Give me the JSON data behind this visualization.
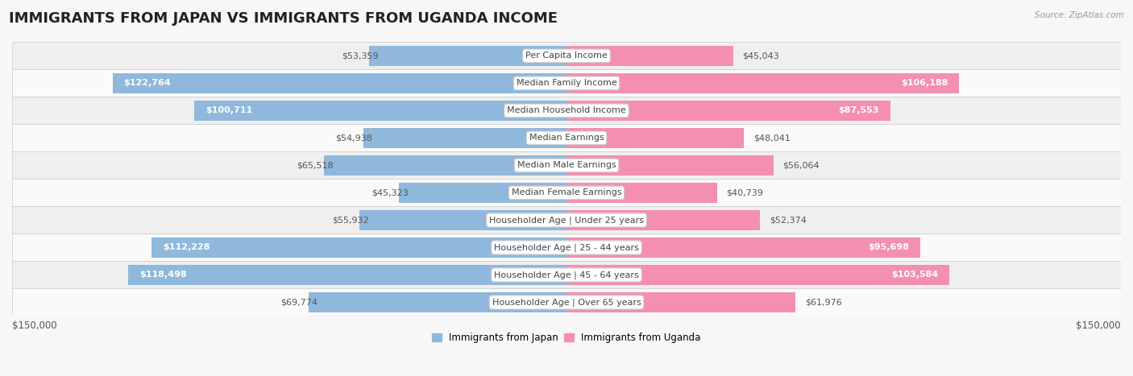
{
  "title": "IMMIGRANTS FROM JAPAN VS IMMIGRANTS FROM UGANDA INCOME",
  "source": "Source: ZipAtlas.com",
  "categories": [
    "Per Capita Income",
    "Median Family Income",
    "Median Household Income",
    "Median Earnings",
    "Median Male Earnings",
    "Median Female Earnings",
    "Householder Age | Under 25 years",
    "Householder Age | 25 - 44 years",
    "Householder Age | 45 - 64 years",
    "Householder Age | Over 65 years"
  ],
  "japan_values": [
    53359,
    122764,
    100711,
    54938,
    65518,
    45323,
    55932,
    112228,
    118498,
    69774
  ],
  "uganda_values": [
    45043,
    106188,
    87553,
    48041,
    56064,
    40739,
    52374,
    95698,
    103584,
    61976
  ],
  "japan_labels": [
    "$53,359",
    "$122,764",
    "$100,711",
    "$54,938",
    "$65,518",
    "$45,323",
    "$55,932",
    "$112,228",
    "$118,498",
    "$69,774"
  ],
  "uganda_labels": [
    "$45,043",
    "$106,188",
    "$87,553",
    "$48,041",
    "$56,064",
    "$40,739",
    "$52,374",
    "$95,698",
    "$103,584",
    "$61,976"
  ],
  "japan_color": "#8fb8dc",
  "uganda_color": "#f48fb0",
  "max_value": 150000,
  "axis_label_left": "$150,000",
  "axis_label_right": "$150,000",
  "bg_color": "#f7f7f7",
  "row_bg_even": "#efefef",
  "row_bg_odd": "#fafafa",
  "title_fontsize": 13,
  "label_fontsize": 8.0,
  "category_fontsize": 8.0,
  "legend_japan": "Immigrants from Japan",
  "legend_uganda": "Immigrants from Uganda",
  "japan_label_threshold": 75000,
  "uganda_label_threshold": 75000,
  "white_label_color": "#ffffff",
  "dark_label_color": "#555555"
}
